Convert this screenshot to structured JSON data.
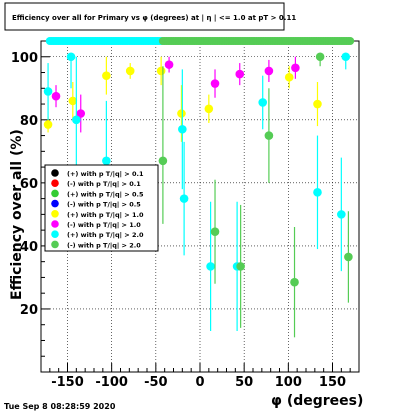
{
  "chart_data": {
    "type": "scatter",
    "title": "Efficiency over all for Primary vs φ (degrees) at |  η | <= 1.0 at pT > 0.11",
    "xlabel": "φ (degrees)",
    "ylabel": "Efficiency over all (%)",
    "xlim": [
      -180,
      180
    ],
    "ylim": [
      0,
      105
    ],
    "grid": true,
    "legend_position": "left",
    "x_ticks": [
      -150,
      -100,
      -50,
      0,
      50,
      100,
      150
    ],
    "y_ticks": [
      20,
      40,
      60,
      80,
      100
    ],
    "timestamp": "Tue Sep  8 08:28:59 2020",
    "series": [
      {
        "name": "(+) with p T/|q| > 0.1",
        "color": "#000000",
        "points": []
      },
      {
        "name": "(-) with p T/|q| > 0.1",
        "color": "#ff0000",
        "points": []
      },
      {
        "name": "(+) with p T/|q| > 0.5",
        "color": "#33cc33",
        "points": []
      },
      {
        "name": "(-) with p T/|q| > 0.5",
        "color": "#0000ff",
        "points": []
      },
      {
        "name": "(+) with p T/|q| > 1.0",
        "color": "#ffff00",
        "points": [
          {
            "x": -172,
            "y": 78.5,
            "lo": 76,
            "hi": 81
          },
          {
            "x": -144,
            "y": 86,
            "lo": 80,
            "hi": 92
          },
          {
            "x": -106,
            "y": 94,
            "lo": 88,
            "hi": 100
          },
          {
            "x": -79,
            "y": 95.5,
            "lo": 93,
            "hi": 98
          },
          {
            "x": -44,
            "y": 95.5,
            "lo": 91,
            "hi": 100
          },
          {
            "x": -21,
            "y": 82,
            "lo": 73,
            "hi": 91
          },
          {
            "x": 10,
            "y": 83.5,
            "lo": 79,
            "hi": 88
          },
          {
            "x": 101,
            "y": 93.5,
            "lo": 90,
            "hi": 97
          },
          {
            "x": 133,
            "y": 85,
            "lo": 78,
            "hi": 92
          }
        ]
      },
      {
        "name": "(-) with p T/|q| > 1.0",
        "color": "#ff00ff",
        "points": [
          {
            "x": -163,
            "y": 87.5,
            "lo": 84,
            "hi": 91
          },
          {
            "x": -135,
            "y": 82,
            "lo": 76,
            "hi": 88
          },
          {
            "x": -35,
            "y": 97.5,
            "lo": 95,
            "hi": 100
          },
          {
            "x": 17,
            "y": 91.5,
            "lo": 87,
            "hi": 96
          },
          {
            "x": 45,
            "y": 94.5,
            "lo": 91,
            "hi": 98
          },
          {
            "x": 78,
            "y": 95.5,
            "lo": 92,
            "hi": 99
          },
          {
            "x": 108,
            "y": 96.5,
            "lo": 93,
            "hi": 100
          }
        ]
      },
      {
        "name": "(+) with p T/|q| > 2.0",
        "color": "#00ffff",
        "points": [
          {
            "x": -172,
            "y": 89,
            "lo": 80,
            "hi": 98
          },
          {
            "x": -146,
            "y": 100,
            "lo": 90,
            "hi": 100
          },
          {
            "x": -140,
            "y": 80,
            "lo": 60,
            "hi": 100
          },
          {
            "x": -106,
            "y": 67,
            "lo": 49,
            "hi": 86
          },
          {
            "x": -20,
            "y": 77,
            "lo": 58,
            "hi": 96
          },
          {
            "x": -18,
            "y": 55,
            "lo": 37,
            "hi": 73
          },
          {
            "x": 12,
            "y": 33.5,
            "lo": 13,
            "hi": 54
          },
          {
            "x": 42,
            "y": 33.5,
            "lo": 13,
            "hi": 54
          },
          {
            "x": 71,
            "y": 85.5,
            "lo": 77,
            "hi": 94
          },
          {
            "x": 133,
            "y": 57,
            "lo": 39,
            "hi": 75
          },
          {
            "x": 160,
            "y": 50,
            "lo": 32,
            "hi": 68
          },
          {
            "x": 165,
            "y": 100,
            "lo": 96,
            "hi": 100
          }
        ]
      },
      {
        "name": "(-) with p T/|q| > 2.0",
        "color": "#55cc55",
        "points": [
          {
            "x": -42,
            "y": 67,
            "lo": 47,
            "hi": 97
          },
          {
            "x": 17,
            "y": 44.5,
            "lo": 28,
            "hi": 61
          },
          {
            "x": 46,
            "y": 33.5,
            "lo": 14,
            "hi": 53
          },
          {
            "x": 78,
            "y": 75,
            "lo": 60,
            "hi": 90
          },
          {
            "x": 107,
            "y": 28.5,
            "lo": 11,
            "hi": 46
          },
          {
            "x": 136,
            "y": 100,
            "lo": 97,
            "hi": 100
          },
          {
            "x": 168,
            "y": 36.5,
            "lo": 22,
            "hi": 51
          }
        ]
      }
    ]
  }
}
